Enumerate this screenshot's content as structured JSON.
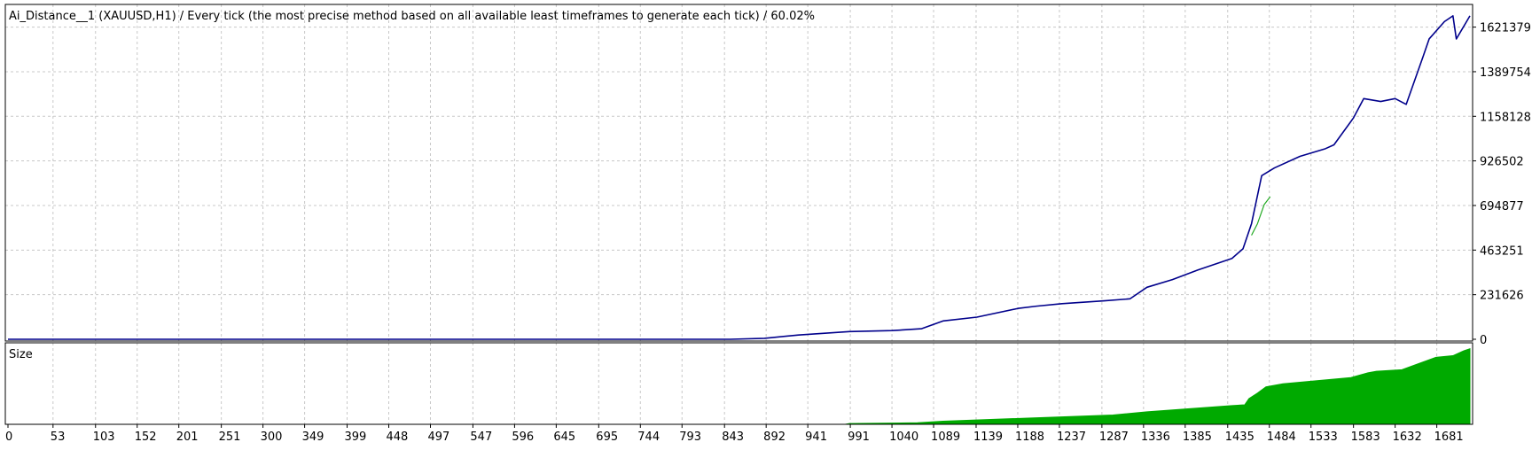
{
  "chart_data": [
    {
      "type": "line",
      "title": "Ai_Distance__1 (XAUUSD,H1) / Every tick (the most precise method based on all available least timeframes to generate each tick) / 60.02%",
      "ylim": [
        0,
        1730000
      ],
      "y_tick_labels": [
        "0",
        "231626",
        "463251",
        "694877",
        "926502",
        "1158128",
        "1389754",
        "1621379"
      ],
      "y_tick_values": [
        0,
        231626,
        463251,
        694877,
        926502,
        1158128,
        1389754,
        1621379
      ],
      "grid": true,
      "series": [
        {
          "color": "#00008b",
          "x": [
            0,
            400,
            850,
            890,
            930,
            990,
            1040,
            1075,
            1100,
            1140,
            1188,
            1210,
            1240,
            1290,
            1320,
            1340,
            1370,
            1400,
            1440,
            1453,
            1463,
            1475,
            1490,
            1520,
            1550,
            1560,
            1583,
            1595,
            1615,
            1632,
            1645,
            1665,
            1672,
            1690,
            1700,
            1704,
            1720
          ],
          "values": [
            0,
            0,
            0,
            5000,
            22000,
            40000,
            45000,
            55000,
            95000,
            115000,
            160000,
            172000,
            185000,
            200000,
            210000,
            270000,
            310000,
            360000,
            420000,
            470000,
            600000,
            850000,
            890000,
            950000,
            990000,
            1010000,
            1150000,
            1250000,
            1235000,
            1250000,
            1220000,
            1470000,
            1560000,
            1650000,
            1680000,
            1560000,
            1680000
          ]
        },
        {
          "color": "#22aa22",
          "x": [
            1463,
            1470,
            1478,
            1485
          ],
          "values": [
            540000,
            600000,
            700000,
            740000
          ]
        }
      ]
    },
    {
      "type": "area",
      "title": "Size",
      "xlim": [
        0,
        1720
      ],
      "x_tick_labels": [
        "0",
        "53",
        "103",
        "152",
        "201",
        "251",
        "300",
        "349",
        "399",
        "448",
        "497",
        "547",
        "596",
        "645",
        "695",
        "744",
        "793",
        "843",
        "892",
        "941",
        "991",
        "1040",
        "1089",
        "1139",
        "1188",
        "1237",
        "1287",
        "1336",
        "1385",
        "1435",
        "1484",
        "1533",
        "1583",
        "1632",
        "1681"
      ],
      "x_tick_values": [
        0,
        53,
        103,
        152,
        201,
        251,
        300,
        349,
        399,
        448,
        497,
        547,
        596,
        645,
        695,
        744,
        793,
        843,
        892,
        941,
        991,
        1040,
        1089,
        1139,
        1188,
        1237,
        1287,
        1336,
        1385,
        1435,
        1484,
        1533,
        1583,
        1632,
        1681
      ],
      "ylim": [
        0,
        1
      ],
      "series": [
        {
          "color": "#00aa00",
          "x": [
            0,
            985,
            990,
            1070,
            1100,
            1200,
            1300,
            1340,
            1390,
            1440,
            1455,
            1460,
            1470,
            1480,
            1500,
            1540,
            1580,
            1600,
            1610,
            1640,
            1660,
            1680,
            1700,
            1712,
            1720
          ],
          "values": [
            0,
            0,
            0.01,
            0.02,
            0.04,
            0.08,
            0.12,
            0.16,
            0.2,
            0.24,
            0.25,
            0.33,
            0.4,
            0.48,
            0.52,
            0.56,
            0.6,
            0.66,
            0.68,
            0.7,
            0.78,
            0.86,
            0.88,
            0.94,
            0.97
          ]
        }
      ]
    }
  ]
}
